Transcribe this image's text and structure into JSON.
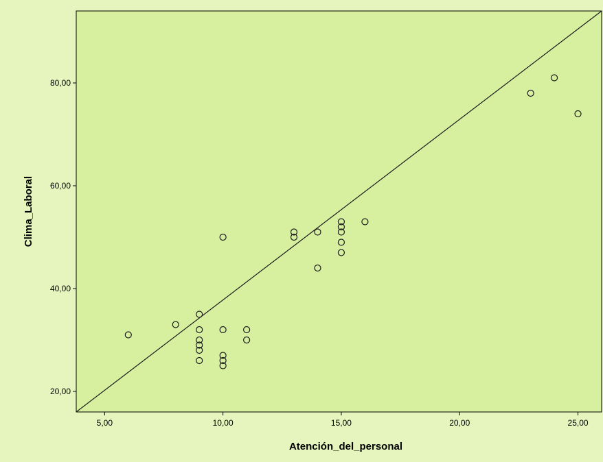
{
  "chart_data": {
    "type": "scatter",
    "title": "",
    "xlabel": "Atención_del_personal",
    "ylabel": "Clima_Laboral",
    "xlim": [
      3.8,
      26.0
    ],
    "ylim": [
      16.0,
      94.0
    ],
    "x_ticks": [
      {
        "value": 5,
        "label": "5,00"
      },
      {
        "value": 10,
        "label": "10,00"
      },
      {
        "value": 15,
        "label": "15,00"
      },
      {
        "value": 20,
        "label": "20,00"
      },
      {
        "value": 25,
        "label": "25,00"
      }
    ],
    "y_ticks": [
      {
        "value": 20,
        "label": "20,00"
      },
      {
        "value": 40,
        "label": "40,00"
      },
      {
        "value": 60,
        "label": "60,00"
      },
      {
        "value": 80,
        "label": "80,00"
      }
    ],
    "points": [
      {
        "x": 6,
        "y": 31
      },
      {
        "x": 8,
        "y": 33
      },
      {
        "x": 9,
        "y": 35
      },
      {
        "x": 9,
        "y": 32
      },
      {
        "x": 9,
        "y": 30
      },
      {
        "x": 9,
        "y": 29
      },
      {
        "x": 9,
        "y": 28
      },
      {
        "x": 9,
        "y": 26
      },
      {
        "x": 10,
        "y": 50
      },
      {
        "x": 10,
        "y": 32
      },
      {
        "x": 10,
        "y": 27
      },
      {
        "x": 10,
        "y": 26
      },
      {
        "x": 10,
        "y": 25
      },
      {
        "x": 11,
        "y": 32
      },
      {
        "x": 11,
        "y": 30
      },
      {
        "x": 13,
        "y": 51
      },
      {
        "x": 13,
        "y": 50
      },
      {
        "x": 14,
        "y": 51
      },
      {
        "x": 14,
        "y": 44
      },
      {
        "x": 15,
        "y": 53
      },
      {
        "x": 15,
        "y": 52
      },
      {
        "x": 15,
        "y": 51
      },
      {
        "x": 15,
        "y": 49
      },
      {
        "x": 15,
        "y": 47
      },
      {
        "x": 16,
        "y": 53
      },
      {
        "x": 23,
        "y": 78
      },
      {
        "x": 24,
        "y": 81
      },
      {
        "x": 25,
        "y": 74
      }
    ],
    "reference_line": {
      "from": [
        3.8,
        16.0
      ],
      "to": [
        26.0,
        94.0
      ]
    },
    "grid": false,
    "colors": {
      "plot_background": "#d7f0a0",
      "outer_background": "#e6f5bd",
      "window_background": "#f0f0f0",
      "marker_stroke": "#1a1a1a",
      "line": "#1a1a1a",
      "axis": "#000000"
    }
  }
}
